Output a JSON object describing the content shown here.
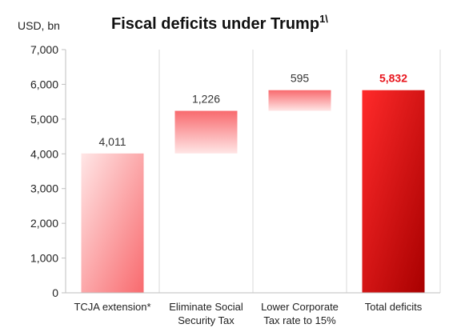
{
  "chart_data": {
    "type": "bar",
    "subtype": "waterfall",
    "title": "Fiscal deficits under Trump",
    "title_superscript": "1\\",
    "unit_label": "USD, bn",
    "categories": [
      [
        "TCJA extension*"
      ],
      [
        "Eliminate Social",
        "Security Tax"
      ],
      [
        "Lower Corporate",
        "Tax rate to 15%"
      ],
      [
        "Total deficits"
      ]
    ],
    "values": [
      4011,
      1226,
      595,
      5832
    ],
    "value_labels": [
      "4,011",
      "1,226",
      "595",
      "5,832"
    ],
    "bar_kinds": [
      "increase",
      "increase",
      "increase",
      "total"
    ],
    "ylim": [
      0,
      7000
    ],
    "yticks": [
      0,
      1000,
      2000,
      3000,
      4000,
      5000,
      6000,
      7000
    ],
    "ytick_labels": [
      "0",
      "1,000",
      "2,000",
      "3,000",
      "4,000",
      "5,000",
      "6,000",
      "7,000"
    ],
    "grid": "vertical-category-separators",
    "legend": "none",
    "colors": {
      "increase_top": "#f86a6e",
      "increase_bottom": "#ffe6e6",
      "total_light": "#ff2a2a",
      "total_dark": "#a80000",
      "total_label": "#e8141c",
      "grid": "#d9d9d9",
      "axis": "#bfbfbf"
    }
  }
}
